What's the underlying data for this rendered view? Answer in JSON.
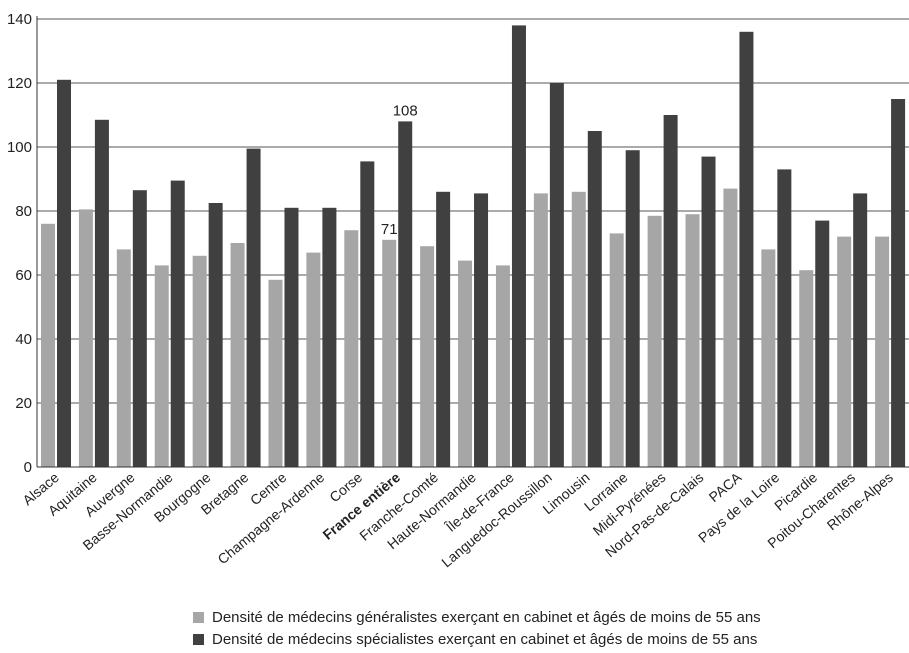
{
  "chart_data": {
    "type": "bar",
    "categories": [
      "Alsace",
      "Aquitaine",
      "Auvergne",
      "Basse-Normandie",
      "Bourgogne",
      "Bretagne",
      "Centre",
      "Champagne-Ardenne",
      "Corse",
      "France entière",
      "Franche-Comté",
      "Haute-Normandie",
      "Île-de-France",
      "Languedoc-Roussillon",
      "Limousin",
      "Lorraine",
      "Midi-Pyrénées",
      "Nord-Pas-de-Calais",
      "PACA",
      "Pays de la Loire",
      "Picardie",
      "Poitou-Charentes",
      "Rhône-Alpes"
    ],
    "highlight_category": "France entière",
    "series": [
      {
        "name": "Densité de médecins généralistes exerçant en cabinet et âgés de moins de 55 ans",
        "color": "#a6a6a6",
        "values": [
          76,
          80.5,
          68,
          63,
          66,
          70,
          58.5,
          67,
          74,
          71,
          69,
          64.5,
          63,
          85.5,
          86,
          73,
          78.5,
          79,
          87,
          68,
          61.5,
          72,
          72
        ]
      },
      {
        "name": "Densité de médecins spécialistes exerçant en cabinet et âgés de moins de 55 ans",
        "color": "#404040",
        "values": [
          121,
          108.5,
          86.5,
          89.5,
          82.5,
          99.5,
          81,
          81,
          95.5,
          108,
          86,
          85.5,
          138,
          120,
          105,
          99,
          110,
          97,
          136,
          93,
          77,
          85.5,
          115
        ]
      }
    ],
    "annotations": [
      {
        "category": "France entière",
        "series": 0,
        "text": "71"
      },
      {
        "category": "France entière",
        "series": 1,
        "text": "108"
      }
    ],
    "yticks": [
      "0",
      "20",
      "40",
      "60",
      "80",
      "100",
      "120",
      "140"
    ],
    "ylim": [
      0,
      140
    ],
    "grid": true,
    "legend_position": "bottom"
  }
}
